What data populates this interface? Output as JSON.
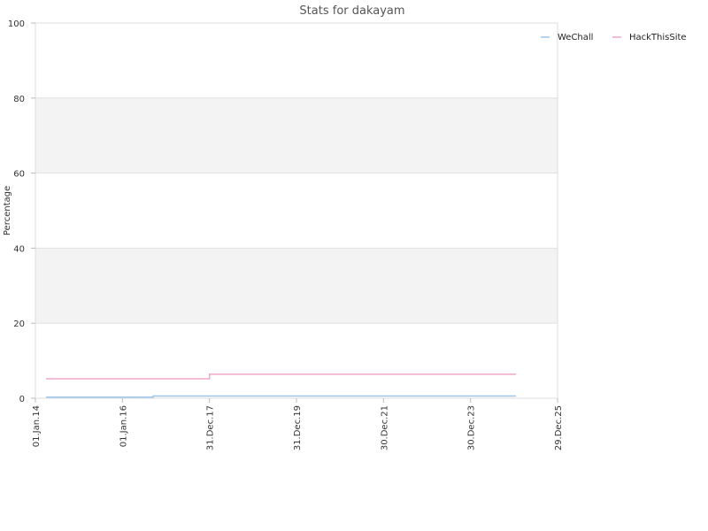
{
  "chart_data": {
    "type": "line",
    "title": "Stats for dakayam",
    "xlabel": "",
    "ylabel": "Percentage",
    "ylim": [
      0,
      100
    ],
    "y_ticks": [
      "0",
      "20",
      "40",
      "60",
      "80",
      "100"
    ],
    "xlim": [
      "2014-01-01",
      "2025-12-29"
    ],
    "x_ticks": [
      "01.Jan.14",
      "01.Jan.16",
      "31.Dec.17",
      "31.Dec.19",
      "30.Dec.21",
      "30.Dec.23",
      "29.Dec.25"
    ],
    "x_tick_dates": [
      "2014-01-01",
      "2016-01-01",
      "2017-12-31",
      "2019-12-31",
      "2021-12-30",
      "2023-12-30",
      "2025-12-29"
    ],
    "grid": true,
    "legend_position": "top-right",
    "series": [
      {
        "name": "WeChall",
        "color": "#9ec6ea",
        "x": [
          "2014-04-01",
          "2016-09-15",
          "2016-09-15",
          "2025-01-15"
        ],
        "y": [
          0.3,
          0.3,
          0.6,
          0.6
        ]
      },
      {
        "name": "HackThisSite",
        "color": "#f0a7c8",
        "x": [
          "2014-04-01",
          "2017-12-31",
          "2017-12-31",
          "2025-01-15"
        ],
        "y": [
          5.2,
          5.2,
          6.4,
          6.4
        ]
      }
    ]
  }
}
